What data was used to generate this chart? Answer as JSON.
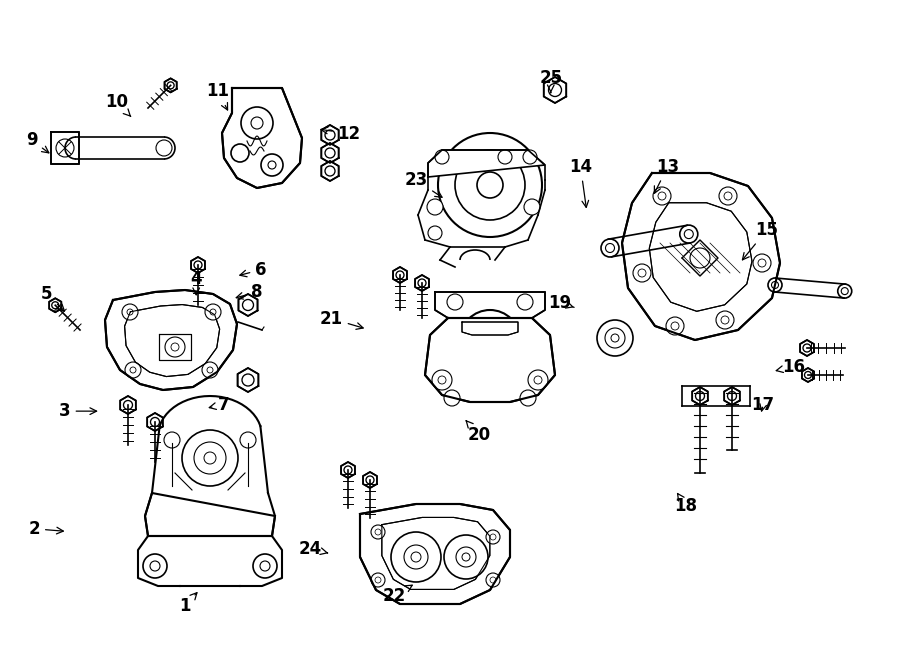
{
  "background_color": "#ffffff",
  "line_color": "#000000",
  "fig_width": 9.0,
  "fig_height": 6.61,
  "dpi": 100,
  "label_data": [
    [
      1,
      0.205,
      0.083,
      0.222,
      0.108
    ],
    [
      2,
      0.038,
      0.2,
      0.075,
      0.196
    ],
    [
      3,
      0.072,
      0.378,
      0.112,
      0.378
    ],
    [
      4,
      0.218,
      0.578,
      0.218,
      0.548
    ],
    [
      5,
      0.052,
      0.555,
      0.075,
      0.525
    ],
    [
      6,
      0.29,
      0.592,
      0.262,
      0.582
    ],
    [
      7,
      0.248,
      0.388,
      0.228,
      0.382
    ],
    [
      8,
      0.285,
      0.558,
      0.258,
      0.548
    ],
    [
      9,
      0.035,
      0.788,
      0.058,
      0.765
    ],
    [
      10,
      0.13,
      0.845,
      0.148,
      0.82
    ],
    [
      11,
      0.242,
      0.862,
      0.255,
      0.828
    ],
    [
      12,
      0.388,
      0.798,
      0.352,
      0.805
    ],
    [
      13,
      0.742,
      0.748,
      0.725,
      0.702
    ],
    [
      14,
      0.645,
      0.748,
      0.652,
      0.68
    ],
    [
      15,
      0.852,
      0.652,
      0.822,
      0.602
    ],
    [
      16,
      0.882,
      0.445,
      0.858,
      0.438
    ],
    [
      17,
      0.848,
      0.388,
      0.845,
      0.372
    ],
    [
      18,
      0.762,
      0.235,
      0.752,
      0.255
    ],
    [
      19,
      0.622,
      0.542,
      0.638,
      0.535
    ],
    [
      20,
      0.532,
      0.342,
      0.515,
      0.368
    ],
    [
      21,
      0.368,
      0.518,
      0.408,
      0.502
    ],
    [
      22,
      0.438,
      0.098,
      0.462,
      0.118
    ],
    [
      23,
      0.462,
      0.728,
      0.495,
      0.698
    ],
    [
      24,
      0.345,
      0.17,
      0.368,
      0.162
    ],
    [
      25,
      0.612,
      0.882,
      0.612,
      0.855
    ]
  ]
}
